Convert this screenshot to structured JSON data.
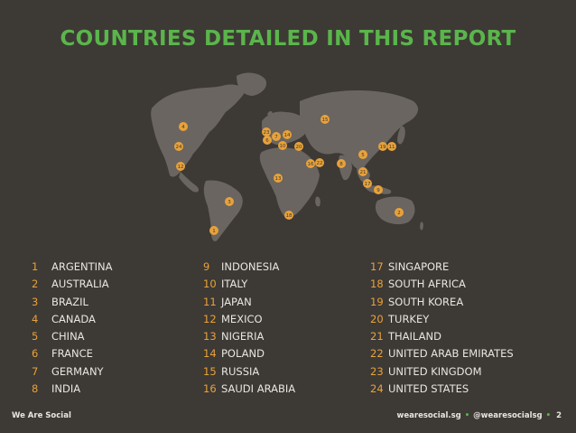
{
  "title": "COUNTRIES DETAILED IN THIS REPORT",
  "countries": [
    {
      "n": "1",
      "name": "ARGENTINA"
    },
    {
      "n": "2",
      "name": "AUSTRALIA"
    },
    {
      "n": "3",
      "name": "BRAZIL"
    },
    {
      "n": "4",
      "name": "CANADA"
    },
    {
      "n": "5",
      "name": "CHINA"
    },
    {
      "n": "6",
      "name": "FRANCE"
    },
    {
      "n": "7",
      "name": "GERMANY"
    },
    {
      "n": "8",
      "name": "INDIA"
    },
    {
      "n": "9",
      "name": "INDONESIA"
    },
    {
      "n": "10",
      "name": "ITALY"
    },
    {
      "n": "11",
      "name": "JAPAN"
    },
    {
      "n": "12",
      "name": "MEXICO"
    },
    {
      "n": "13",
      "name": "NIGERIA"
    },
    {
      "n": "14",
      "name": "POLAND"
    },
    {
      "n": "15",
      "name": "RUSSIA"
    },
    {
      "n": "16",
      "name": "SAUDI ARABIA"
    },
    {
      "n": "17",
      "name": "SINGAPORE"
    },
    {
      "n": "18",
      "name": "SOUTH AFRICA"
    },
    {
      "n": "19",
      "name": "SOUTH KOREA"
    },
    {
      "n": "20",
      "name": "TURKEY"
    },
    {
      "n": "21",
      "name": "THAILAND"
    },
    {
      "n": "22",
      "name": "UNITED ARAB EMIRATES"
    },
    {
      "n": "23",
      "name": "UNITED KINGDOM"
    },
    {
      "n": "24",
      "name": "UNITED STATES"
    }
  ],
  "map_markers": [
    "4",
    "24",
    "12",
    "3",
    "1",
    "23",
    "6",
    "7",
    "10",
    "14",
    "20",
    "15",
    "16",
    "22",
    "13",
    "18",
    "8",
    "5",
    "19",
    "11",
    "21",
    "17",
    "9",
    "2"
  ],
  "footer": {
    "brand": "We Are Social",
    "site": "wearesocial.sg",
    "handle": "@wearesocialsg",
    "page": "2"
  },
  "colors": {
    "background": "#3d3935",
    "accent_green": "#5ab54b",
    "marker_orange": "#e8a23a",
    "land": "#6a6560"
  }
}
